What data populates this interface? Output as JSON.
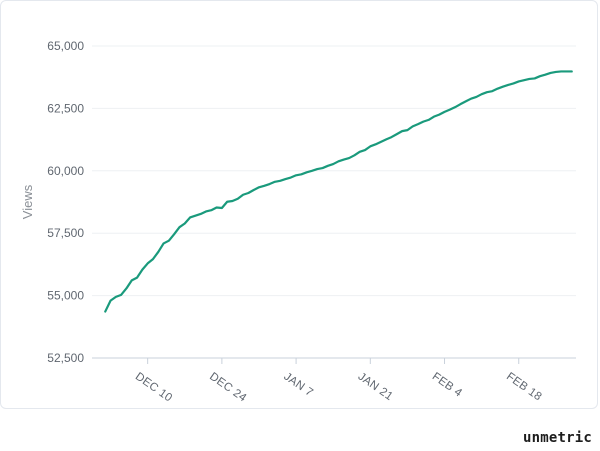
{
  "brand": {
    "name": "unmetric"
  },
  "chart_data": {
    "type": "line",
    "title": "",
    "xlabel": "",
    "ylabel": "Views",
    "ylim": [
      52500,
      65000
    ],
    "yticks": [
      "52,500",
      "55,000",
      "57,500",
      "60,000",
      "62,500",
      "65,000"
    ],
    "ytick_values": [
      52500,
      55000,
      57500,
      60000,
      62500,
      65000
    ],
    "xticks": [
      "DEC 10",
      "DEC 24",
      "JAN 7",
      "JAN 21",
      "FEB 4",
      "FEB 18"
    ],
    "xtick_values": [
      "2018-12-10",
      "2018-12-24",
      "2019-01-07",
      "2019-01-21",
      "2019-02-04",
      "2019-02-18"
    ],
    "grid": true,
    "legend": "none",
    "colors": {
      "line": "#1a9a7c",
      "grid": "#eef0f3",
      "axis": "#c9d1db"
    },
    "series": [
      {
        "x": [
          "2018-12-02",
          "2018-12-03",
          "2018-12-04",
          "2018-12-05",
          "2018-12-06",
          "2018-12-07",
          "2018-12-08",
          "2018-12-09",
          "2018-12-10",
          "2018-12-11",
          "2018-12-12",
          "2018-12-13",
          "2018-12-14",
          "2018-12-15",
          "2018-12-16",
          "2018-12-17",
          "2018-12-18",
          "2018-12-19",
          "2018-12-20",
          "2018-12-21",
          "2018-12-22",
          "2018-12-23",
          "2018-12-24",
          "2018-12-25",
          "2018-12-26",
          "2018-12-27",
          "2018-12-28",
          "2018-12-29",
          "2018-12-30",
          "2018-12-31",
          "2019-01-01",
          "2019-01-02",
          "2019-01-03",
          "2019-01-04",
          "2019-01-05",
          "2019-01-06",
          "2019-01-07",
          "2019-01-08",
          "2019-01-09",
          "2019-01-10",
          "2019-01-11",
          "2019-01-12",
          "2019-01-13",
          "2019-01-14",
          "2019-01-15",
          "2019-01-16",
          "2019-01-17",
          "2019-01-18",
          "2019-01-19",
          "2019-01-20",
          "2019-01-21",
          "2019-01-22",
          "2019-01-23",
          "2019-01-24",
          "2019-01-25",
          "2019-01-26",
          "2019-01-27",
          "2019-01-28",
          "2019-01-29",
          "2019-01-30",
          "2019-01-31",
          "2019-02-01",
          "2019-02-02",
          "2019-02-03",
          "2019-02-04",
          "2019-02-05",
          "2019-02-06",
          "2019-02-07",
          "2019-02-08",
          "2019-02-09",
          "2019-02-10",
          "2019-02-11",
          "2019-02-12",
          "2019-02-13",
          "2019-02-14",
          "2019-02-15",
          "2019-02-16",
          "2019-02-17",
          "2019-02-18",
          "2019-02-19",
          "2019-02-20",
          "2019-02-21",
          "2019-02-22",
          "2019-02-23",
          "2019-02-24",
          "2019-02-25",
          "2019-02-26",
          "2019-02-27",
          "2019-02-28"
        ],
        "values": [
          54360,
          54800,
          54950,
          55030,
          55290,
          55610,
          55720,
          56040,
          56290,
          56460,
          56750,
          57090,
          57200,
          57460,
          57740,
          57890,
          58130,
          58200,
          58270,
          58370,
          58420,
          58530,
          58510,
          58760,
          58790,
          58880,
          59040,
          59110,
          59230,
          59340,
          59400,
          59470,
          59560,
          59600,
          59670,
          59730,
          59820,
          59860,
          59940,
          60000,
          60070,
          60110,
          60200,
          60270,
          60380,
          60450,
          60510,
          60620,
          60760,
          60830,
          60980,
          61060,
          61160,
          61260,
          61350,
          61470,
          61590,
          61630,
          61780,
          61870,
          61970,
          62040,
          62170,
          62250,
          62360,
          62450,
          62550,
          62670,
          62780,
          62890,
          62960,
          63070,
          63150,
          63190,
          63290,
          63370,
          63440,
          63500,
          63580,
          63630,
          63680,
          63700,
          63790,
          63850,
          63920,
          63960,
          63980,
          63980,
          63980
        ]
      }
    ]
  }
}
